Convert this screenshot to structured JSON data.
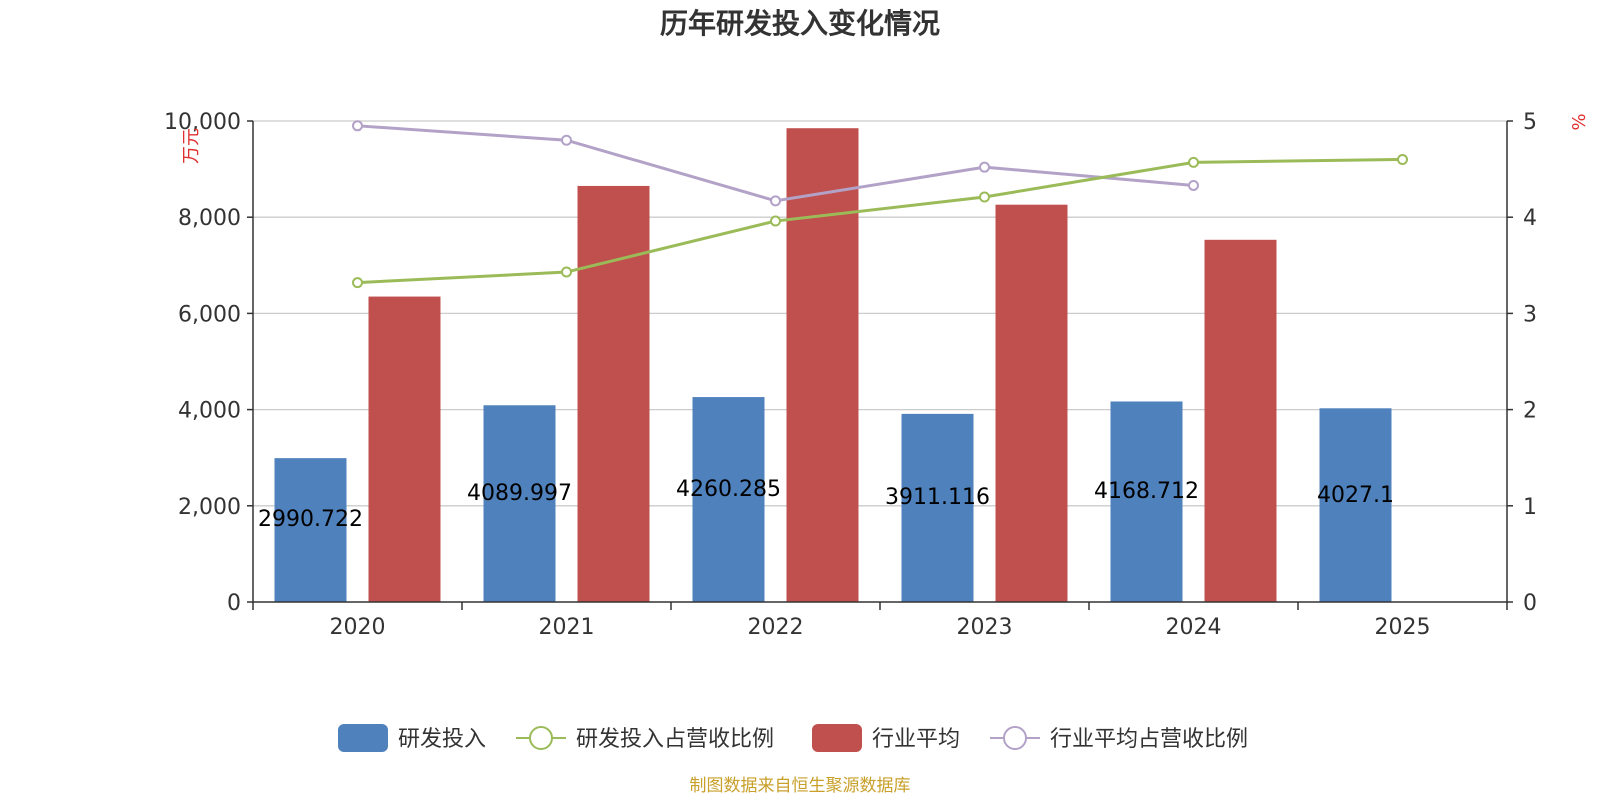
{
  "chart_data": {
    "type": "bar",
    "title": "历年研发投入变化情况",
    "categories": [
      "2020",
      "2021",
      "2022",
      "2023",
      "2024",
      "2025"
    ],
    "y_left": {
      "unit": "万元",
      "ylim": [
        0,
        10000
      ],
      "ticks": [
        0,
        2000,
        4000,
        6000,
        8000,
        10000
      ],
      "tick_labels": [
        "0",
        "2,000",
        "4,000",
        "6,000",
        "8,000",
        "10,000"
      ]
    },
    "y_right": {
      "unit": "%",
      "ylim": [
        0,
        5
      ],
      "ticks": [
        0,
        1,
        2,
        3,
        4,
        5
      ],
      "tick_labels": [
        "0",
        "1",
        "2",
        "3",
        "4",
        "5"
      ]
    },
    "grid": true,
    "legend_position": "bottom-center",
    "series": [
      {
        "name": "研发投入",
        "type": "bar",
        "axis": "left",
        "color": "#4f81bd",
        "values": [
          2990.722,
          4089.997,
          4260.285,
          3911.116,
          4168.712,
          4027.1
        ],
        "labels": [
          "2990.722",
          "4089.997",
          "4260.285",
          "3911.116",
          "4168.712",
          "4027.1"
        ]
      },
      {
        "name": "研发投入占营收比例",
        "type": "line",
        "axis": "right",
        "color": "#9bbb59",
        "values": [
          3.32,
          3.43,
          3.96,
          4.21,
          4.57,
          4.6
        ]
      },
      {
        "name": "行业平均",
        "type": "bar",
        "axis": "left",
        "color": "#c0504d",
        "values": [
          6350,
          8650,
          9850,
          8260,
          7530,
          null
        ]
      },
      {
        "name": "行业平均占营收比例",
        "type": "line",
        "axis": "right",
        "color": "#b3a2c7",
        "values": [
          4.95,
          4.8,
          4.17,
          4.52,
          4.33,
          null
        ]
      }
    ],
    "source": "制图数据来自恒生聚源数据库"
  }
}
